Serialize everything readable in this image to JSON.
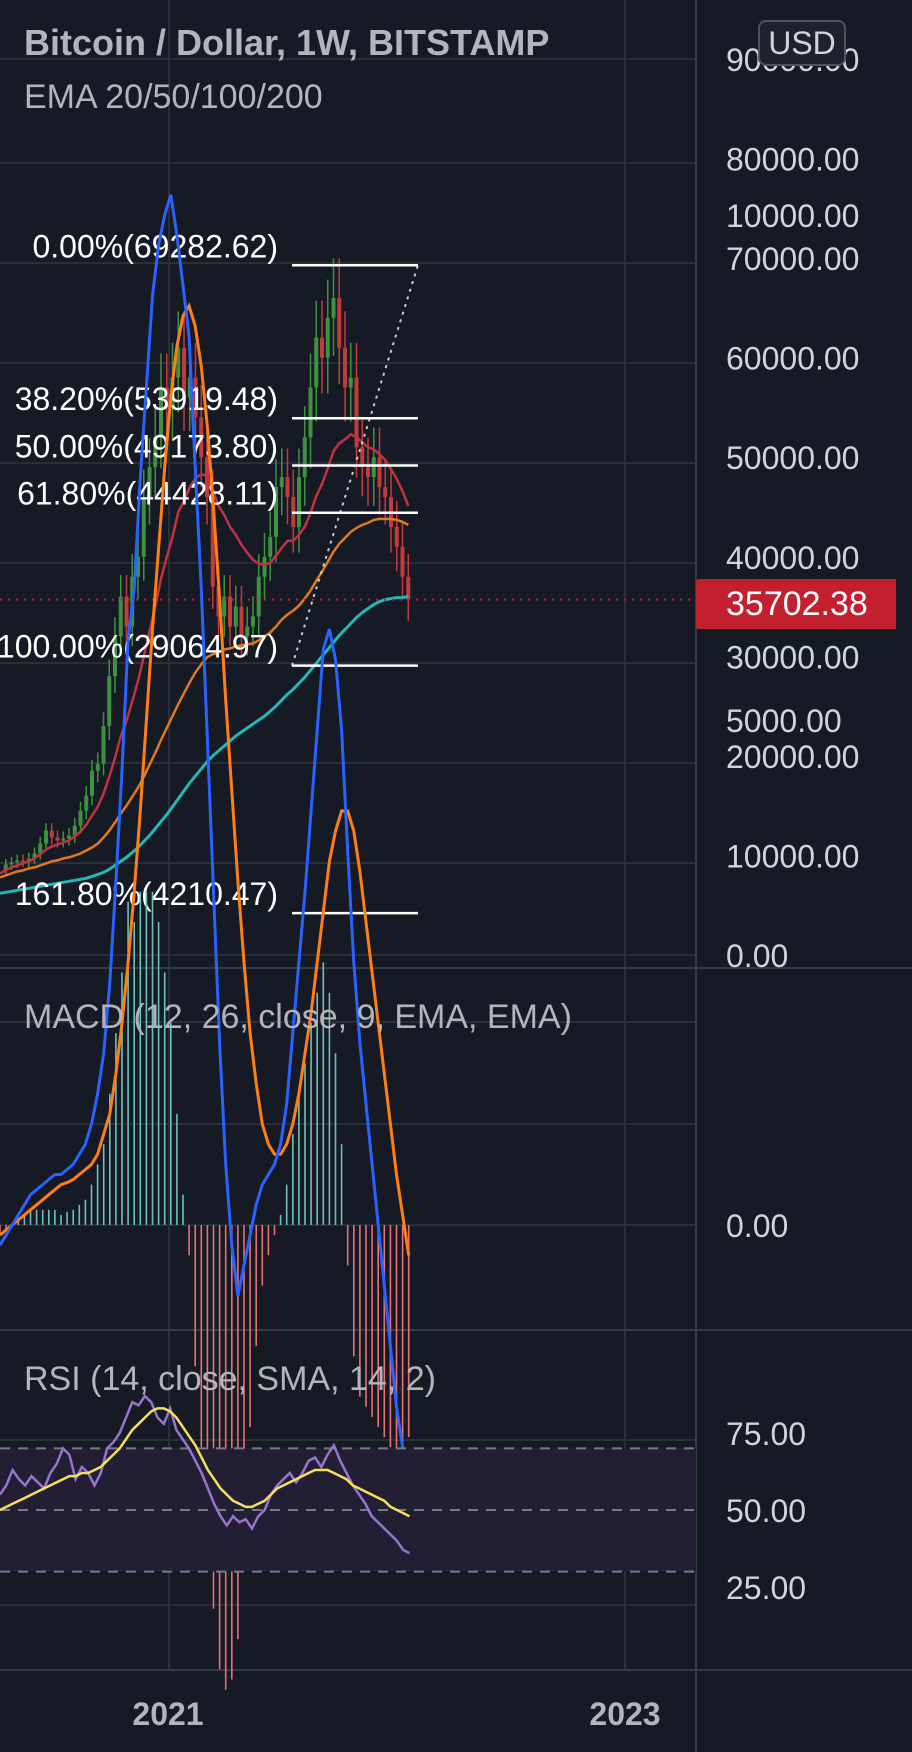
{
  "header": {
    "title": "Bitcoin / Dollar, 1W, BITSTAMP",
    "indicator": "EMA 20/50/100/200",
    "currency_button": "USD"
  },
  "current_price": "35702.38",
  "colors": {
    "background": "#161a25",
    "grid": "#2a2e39",
    "up_candle": "#3f9142",
    "down_candle": "#c23b3b",
    "ema_20": "#c0333f",
    "ema_50": "#e07a1c",
    "ema_200": "#22b8b8",
    "macd_line": "#2962ff",
    "signal_line": "#ff7f16",
    "hist_up": "#6ec2b5",
    "hist_down": "#e57373",
    "rsi_line": "#9575cd",
    "rsi_ma": "#f5e05c",
    "price_tag": "#c2202f"
  },
  "chart_data": [
    {
      "type": "candlestick",
      "title": "Bitcoin / Dollar, 1W, BITSTAMP",
      "subtitle": "EMA 20/50/100/200",
      "ylim": [
        0,
        90000
      ],
      "y_ticks": [
        "90000.00",
        "80000.00",
        "70000.00",
        "60000.00",
        "50000.00",
        "40000.00",
        "30000.00",
        "20000.00",
        "10000.00",
        "0.00"
      ],
      "x_ticks": [
        "2021",
        "2023"
      ],
      "current_price": 35702.38,
      "fib_levels": [
        {
          "label": "0.00%(69282.62)",
          "value": 69282.62
        },
        {
          "label": "38.20%(53919.48)",
          "value": 53919.48
        },
        {
          "label": "50.00%(49173.80)",
          "value": 49173.8
        },
        {
          "label": "61.80%(44428.11)",
          "value": 44428.11
        },
        {
          "label": "100.00%(29064.97)",
          "value": 29064.97
        },
        {
          "label": "161.80%(4210.47)",
          "value": 4210.47
        }
      ],
      "price_series": [
        8500,
        9100,
        9300,
        9500,
        9400,
        9700,
        10200,
        11200,
        12500,
        11800,
        11500,
        11700,
        12000,
        13000,
        14500,
        16000,
        18500,
        19200,
        23000,
        28000,
        32000,
        36000,
        33000,
        38000,
        40000,
        46000,
        49000,
        52000,
        57000,
        55000,
        58000,
        61000,
        56000,
        58000,
        54000,
        50000,
        46000,
        37000,
        34000,
        36000,
        33000,
        35000,
        32000,
        33000,
        34000,
        38000,
        40000,
        42000,
        47000,
        48000,
        46000,
        43000,
        48000,
        52000,
        57000,
        62000,
        60000,
        64000,
        66000,
        61000,
        57000,
        58000,
        51000,
        49000,
        48000,
        50000,
        47000,
        46000,
        43000,
        41000,
        38000,
        35702
      ],
      "ema_20": [
        8200,
        8500,
        8800,
        9000,
        9200,
        9400,
        9700,
        10100,
        10600,
        10900,
        11100,
        11300,
        11500,
        11900,
        12400,
        13100,
        14000,
        14900,
        16200,
        17900,
        19800,
        22000,
        23500,
        25500,
        27500,
        30000,
        32500,
        35000,
        37800,
        40000,
        42000,
        44500,
        45600,
        47000,
        47900,
        48300,
        48100,
        46700,
        45100,
        44200,
        43000,
        42200,
        41200,
        40400,
        39700,
        39300,
        39200,
        39400,
        40100,
        40900,
        41600,
        41600,
        42200,
        43000,
        44400,
        46100,
        47300,
        48900,
        50600,
        51400,
        51800,
        52300,
        52000,
        51500,
        51000,
        50800,
        50300,
        49700,
        48800,
        47800,
        46600,
        45100
      ],
      "ema_50": [
        7800,
        8000,
        8200,
        8400,
        8500,
        8700,
        8800,
        9000,
        9200,
        9400,
        9500,
        9700,
        9800,
        10000,
        10200,
        10500,
        10800,
        11200,
        11800,
        12500,
        13300,
        14200,
        15000,
        15900,
        16800,
        17900,
        19100,
        20300,
        21600,
        22800,
        24000,
        25200,
        26300,
        27400,
        28400,
        29200,
        29900,
        30200,
        30400,
        30700,
        30800,
        31000,
        31100,
        31200,
        31300,
        31600,
        32000,
        32400,
        33000,
        33700,
        34200,
        34600,
        35100,
        35800,
        36600,
        37600,
        38500,
        39500,
        40500,
        41300,
        41900,
        42500,
        42900,
        43200,
        43400,
        43700,
        43800,
        43800,
        43800,
        43700,
        43500,
        43200
      ],
      "ema_200": [
        6200,
        6300,
        6400,
        6500,
        6600,
        6700,
        6800,
        6900,
        7000,
        7100,
        7200,
        7300,
        7400,
        7500,
        7600,
        7700,
        7900,
        8100,
        8300,
        8600,
        9000,
        9400,
        9800,
        10300,
        10800,
        11400,
        12000,
        12700,
        13400,
        14100,
        14900,
        15700,
        16500,
        17300,
        18000,
        18700,
        19400,
        20000,
        20500,
        21000,
        21500,
        22000,
        22400,
        22800,
        23200,
        23600,
        24000,
        24500,
        25000,
        25600,
        26200,
        26700,
        27300,
        27900,
        28600,
        29300,
        30000,
        30700,
        31400,
        32100,
        32700,
        33300,
        33900,
        34400,
        34800,
        35200,
        35500,
        35700,
        35800,
        35900,
        35900,
        36000
      ]
    },
    {
      "type": "line",
      "title": "MACD (12, 26, close, 9, EMA, EMA)",
      "ylim": [
        -3000,
        11000
      ],
      "y_ticks": [
        "10000.00",
        "5000.00",
        "0.00"
      ],
      "macd": [
        -200,
        -100,
        0,
        100,
        200,
        300,
        350,
        400,
        450,
        500,
        500,
        550,
        600,
        700,
        800,
        1000,
        1300,
        1700,
        2400,
        3400,
        4500,
        5800,
        6300,
        7400,
        8300,
        9200,
        9700,
        10000,
        10200,
        9800,
        9300,
        8800,
        7500,
        6300,
        4800,
        3300,
        1800,
        600,
        -200,
        -700,
        -400,
        -100,
        200,
        400,
        500,
        600,
        800,
        1200,
        1900,
        2600,
        3300,
        4100,
        4900,
        5700,
        5900,
        5600,
        4900,
        3700,
        2600,
        1800,
        1200,
        600,
        0,
        -600,
        -1200,
        -1800,
        -2200,
        -2400
      ],
      "signal": [
        -100,
        -50,
        0,
        50,
        100,
        150,
        200,
        250,
        300,
        350,
        400,
        420,
        450,
        500,
        550,
        600,
        700,
        900,
        1100,
        1500,
        2000,
        2600,
        3300,
        4100,
        5000,
        5900,
        6700,
        7500,
        8200,
        8700,
        9000,
        9100,
        8900,
        8500,
        7900,
        7100,
        6200,
        5200,
        4300,
        3400,
        2600,
        1900,
        1400,
        1000,
        800,
        700,
        700,
        800,
        1000,
        1300,
        1700,
        2100,
        2600,
        3100,
        3600,
        3900,
        4100,
        4100,
        3900,
        3500,
        3000,
        2500,
        2000,
        1500,
        1000,
        500,
        100,
        -300
      ]
    },
    {
      "type": "line",
      "title": "RSI (14, close, SMA, 14, 2)",
      "ylim": [
        15,
        90
      ],
      "y_ticks": [
        "75.00",
        "50.00",
        "25.00"
      ],
      "bands": [
        70,
        50,
        30
      ],
      "rsi": [
        55,
        58,
        63,
        60,
        58,
        61,
        59,
        57,
        62,
        65,
        70,
        68,
        60,
        64,
        62,
        58,
        62,
        70,
        72,
        75,
        80,
        85,
        84,
        87,
        85,
        80,
        78,
        83,
        76,
        73,
        70,
        66,
        62,
        57,
        52,
        48,
        45,
        48,
        46,
        47,
        44,
        48,
        50,
        55,
        58,
        60,
        62,
        59,
        62,
        66,
        67,
        64,
        68,
        71,
        66,
        62,
        58,
        55,
        52,
        48,
        46,
        44,
        42,
        40,
        37,
        36
      ],
      "rsi_ma": [
        50,
        51,
        52,
        53,
        54,
        55,
        56,
        57,
        58,
        59,
        60,
        61,
        61,
        62,
        62,
        63,
        64,
        66,
        68,
        70,
        73,
        76,
        78,
        80,
        82,
        83,
        83,
        82,
        80,
        77,
        74,
        71,
        67,
        63,
        60,
        57,
        55,
        53,
        52,
        51,
        51,
        52,
        53,
        55,
        57,
        58,
        59,
        60,
        61,
        62,
        63,
        63,
        63,
        62,
        61,
        60,
        58,
        57,
        56,
        55,
        54,
        53,
        51,
        50,
        49,
        48
      ]
    }
  ]
}
